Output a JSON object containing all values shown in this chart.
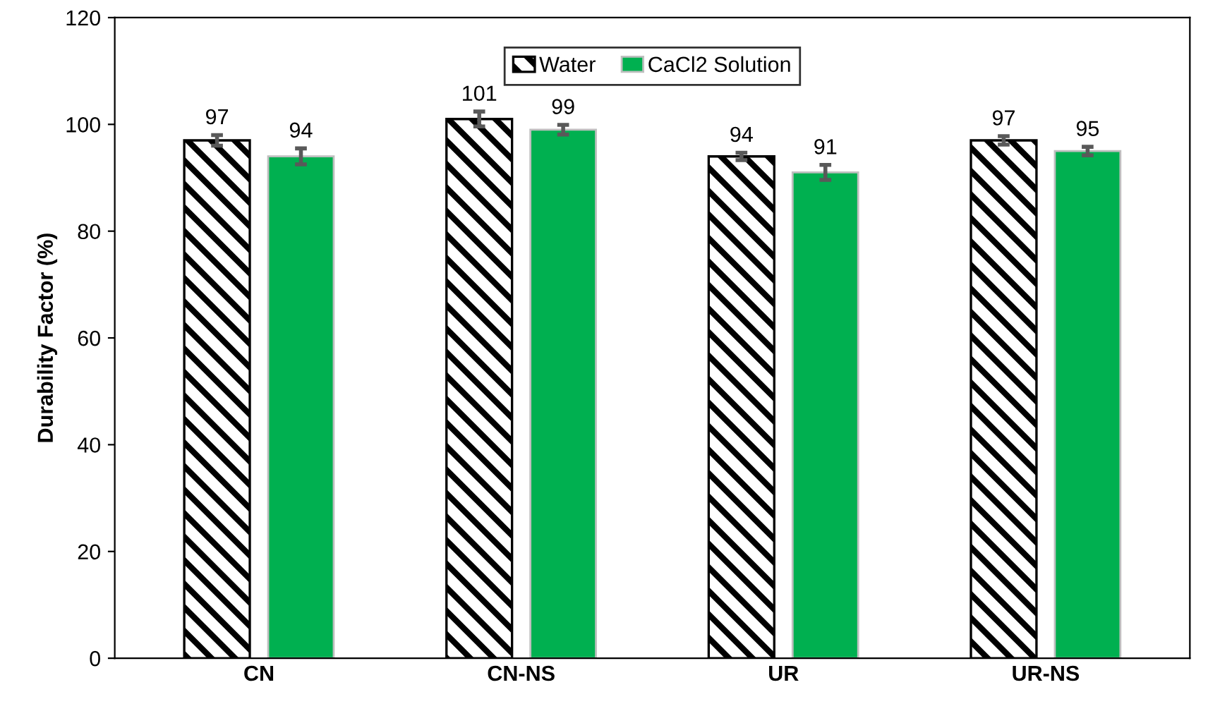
{
  "chart_data": {
    "type": "bar",
    "ylabel": "Durability Factor (%)",
    "categories": [
      "CN",
      "CN-NS",
      "UR",
      "UR-NS"
    ],
    "series": [
      {
        "name": "Water",
        "color": "#000000",
        "values": [
          97,
          101,
          94,
          97
        ],
        "errors": [
          1,
          1.4,
          0.7,
          0.8
        ]
      },
      {
        "name": "CaCl2 Solution",
        "color": "#00b050",
        "values": [
          94,
          99,
          91,
          95
        ],
        "errors": [
          1.5,
          0.9,
          1.4,
          0.8
        ]
      }
    ],
    "ylim": [
      0,
      120
    ],
    "yticks": [
      0,
      20,
      40,
      60,
      80,
      100,
      120
    ],
    "data_labels": true,
    "legend": "top",
    "grid": false
  }
}
